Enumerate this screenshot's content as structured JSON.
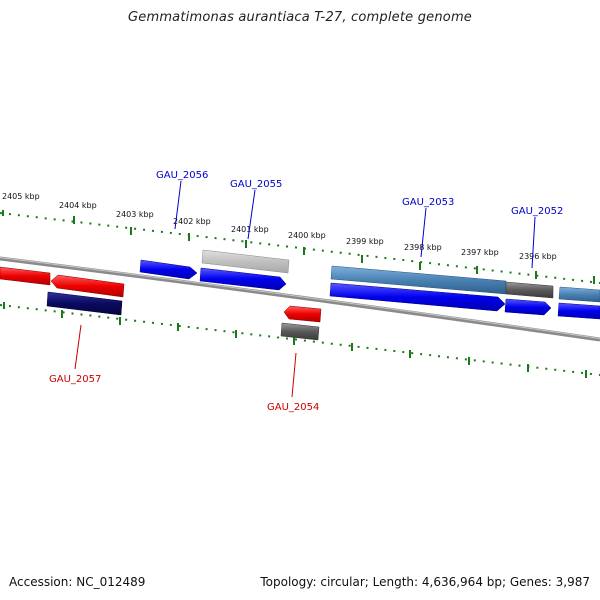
{
  "title": "Gemmatimonas aurantiaca T-27, complete genome",
  "footer": {
    "accession": "Accession: NC_012489",
    "summary": "Topology: circular; Length: 4,636,964 bp; Genes: 3,987"
  },
  "colors": {
    "forward_gene": "#0000ee",
    "reverse_gene": "#ee0000",
    "forward_label": "#0000cc",
    "reverse_label": "#cc0000",
    "ticks": "#1a7a1a",
    "backbone": "#888888",
    "steel_feature": "#4a82b4",
    "gray_feature": "#555555",
    "light_feature": "#c4c4c4",
    "navy_feature": "#0a0a60"
  },
  "scale_labels": [
    "2405 kbp",
    "2404 kbp",
    "2403 kbp",
    "2402 kbp",
    "2401 kbp",
    "2400 kbp",
    "2399 kbp",
    "2398 kbp",
    "2397 kbp",
    "2396 kbp"
  ],
  "gene_labels": {
    "top": [
      "GAU_2056",
      "GAU_2055",
      "GAU_2053",
      "GAU_2052"
    ],
    "bottom": [
      "GAU_2057",
      "GAU_2054"
    ]
  }
}
